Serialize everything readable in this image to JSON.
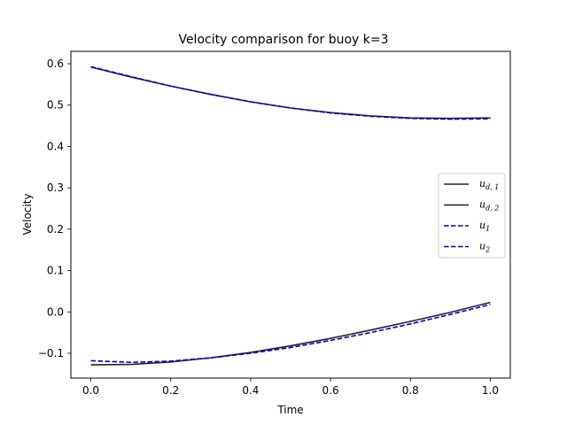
{
  "chart_data": {
    "type": "line",
    "title": "Velocity comparison for buoy k=3",
    "xlabel": "Time",
    "ylabel": "Velocity",
    "xlim": [
      -0.05,
      1.05
    ],
    "ylim": [
      -0.16,
      0.63
    ],
    "xticks": [
      0.0,
      0.2,
      0.4,
      0.6,
      0.8,
      1.0
    ],
    "xtick_labels": [
      "0.0",
      "0.2",
      "0.4",
      "0.6",
      "0.8",
      "1.0"
    ],
    "yticks": [
      -0.1,
      0.0,
      0.1,
      0.2,
      0.3,
      0.4,
      0.5,
      0.6
    ],
    "ytick_labels": [
      "−0.1",
      "0.0",
      "0.1",
      "0.2",
      "0.3",
      "0.4",
      "0.5",
      "0.6"
    ],
    "grid": false,
    "legend_position": "center-right",
    "x": [
      0.0,
      0.1,
      0.2,
      0.3,
      0.4,
      0.5,
      0.6,
      0.7,
      0.8,
      0.9,
      1.0
    ],
    "series": [
      {
        "name": "u_{d,1}",
        "style": "solid",
        "color": "#222222",
        "values": [
          0.592,
          0.568,
          0.546,
          0.526,
          0.508,
          0.493,
          0.482,
          0.474,
          0.469,
          0.468,
          0.469
        ]
      },
      {
        "name": "u_{d,2}",
        "style": "solid",
        "color": "#222222",
        "values": [
          -0.128,
          -0.127,
          -0.121,
          -0.111,
          -0.098,
          -0.082,
          -0.064,
          -0.044,
          -0.023,
          -0.001,
          0.023
        ]
      },
      {
        "name": "u_1",
        "style": "dashed",
        "color": "#0000cc",
        "values": [
          0.593,
          0.569,
          0.546,
          0.526,
          0.508,
          0.493,
          0.481,
          0.473,
          0.468,
          0.466,
          0.467
        ]
      },
      {
        "name": "u_2",
        "style": "dashed",
        "color": "#0000cc",
        "values": [
          -0.118,
          -0.122,
          -0.119,
          -0.111,
          -0.1,
          -0.086,
          -0.069,
          -0.05,
          -0.029,
          -0.006,
          0.018
        ]
      }
    ],
    "legend": [
      {
        "base": "u",
        "sub": "d, 1"
      },
      {
        "base": "u",
        "sub": "d, 2"
      },
      {
        "base": "u",
        "sub": "1"
      },
      {
        "base": "u",
        "sub": "2"
      }
    ]
  }
}
